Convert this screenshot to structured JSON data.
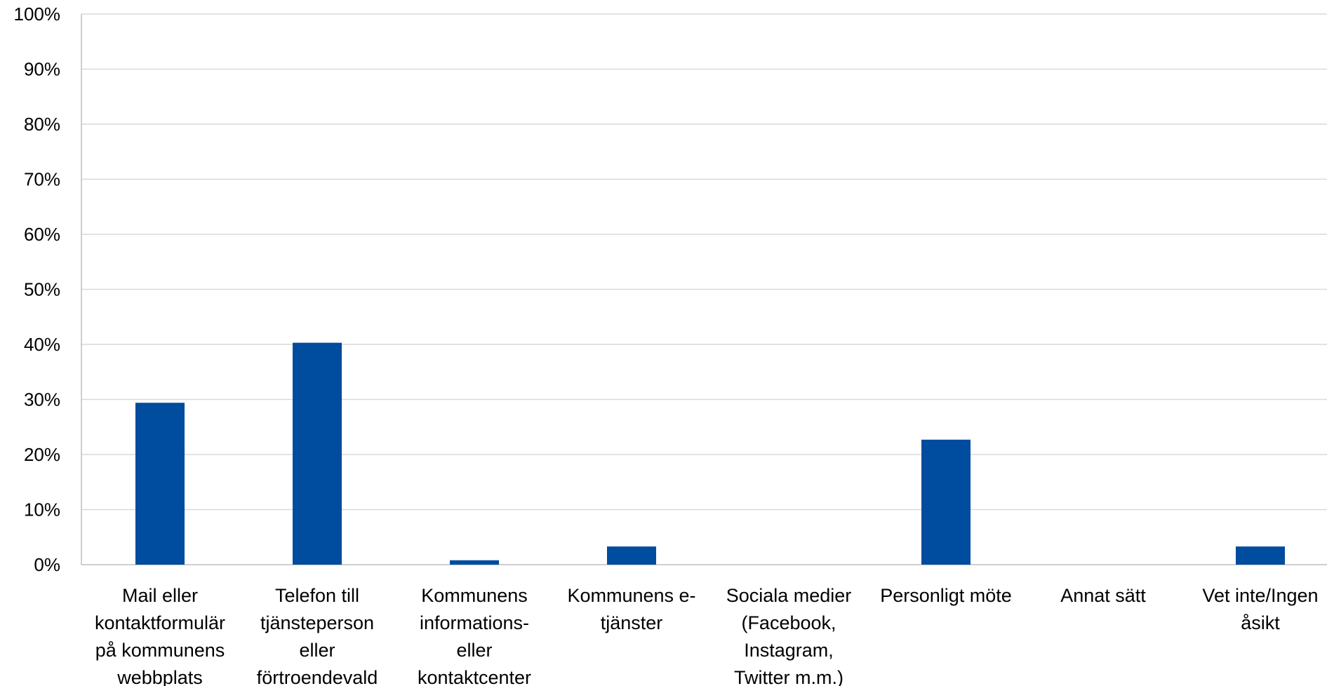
{
  "chart_data": {
    "type": "bar",
    "title": "",
    "xlabel": "",
    "ylabel": "",
    "ylim": [
      0,
      100
    ],
    "y_tick_labels": [
      "0%",
      "10%",
      "20%",
      "30%",
      "40%",
      "50%",
      "60%",
      "70%",
      "80%",
      "90%",
      "100%"
    ],
    "grid": true,
    "bar_color": "#004C9E",
    "categories": [
      [
        "Mail eller",
        "kontaktformulär",
        "på kommunens",
        "webbplats"
      ],
      [
        "Telefon till",
        "tjänsteperson",
        "eller",
        "förtroendevald"
      ],
      [
        "Kommunens",
        "informations-",
        "eller",
        "kontaktcenter"
      ],
      [
        "Kommunens e-",
        "tjänster"
      ],
      [
        "Sociala medier",
        "(Facebook,",
        "Instagram,",
        "Twitter m.m.)"
      ],
      [
        "Personligt möte"
      ],
      [
        "Annat sätt"
      ],
      [
        "Vet inte/Ingen",
        "åsikt"
      ]
    ],
    "values": [
      29.4,
      40.3,
      0.8,
      3.3,
      0,
      22.7,
      0,
      3.3
    ]
  }
}
